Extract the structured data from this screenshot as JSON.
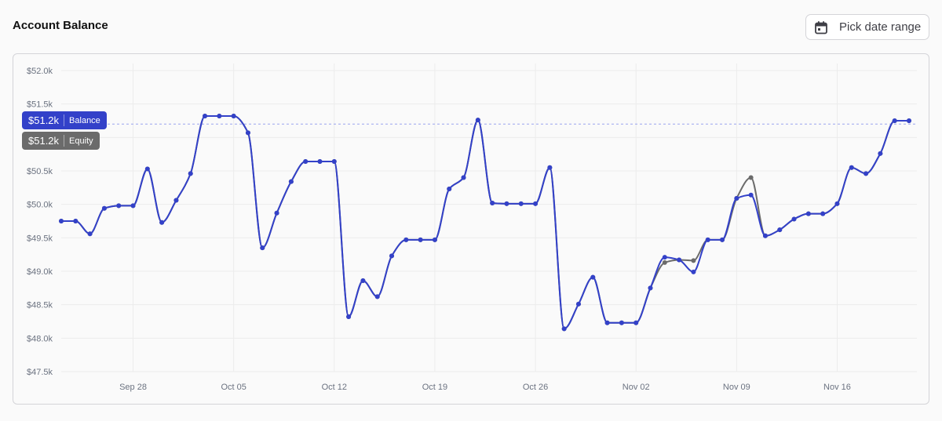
{
  "header": {
    "title": "Account Balance",
    "date_button_label": "Pick date range"
  },
  "colors": {
    "balance": "#3341c9",
    "equity": "#6b6b6b",
    "grid": "#ececec",
    "crosshair": "#9aa3ee"
  },
  "tooltip": {
    "balance_value": "$51.2k",
    "balance_label": "Balance",
    "equity_value": "$51.2k",
    "equity_label": "Equity"
  },
  "chart_data": {
    "type": "line",
    "title": "Account Balance",
    "xlabel": "",
    "ylabel": "",
    "ylim": [
      47500,
      52000
    ],
    "y_ticks": [
      47500,
      48000,
      48500,
      49000,
      49500,
      50000,
      50500,
      51000,
      51500,
      52000
    ],
    "y_tick_labels": [
      "$47.5k",
      "$48.0k",
      "$48.5k",
      "$49.0k",
      "$49.5k",
      "$50.0k",
      "$50.5k",
      "$51.0k",
      "$51.5k",
      "$52.0k"
    ],
    "x_range": [
      "2024-09-23",
      "2024-11-21"
    ],
    "x_ticks": [
      "2024-09-28",
      "2024-10-05",
      "2024-10-12",
      "2024-10-19",
      "2024-10-26",
      "2024-11-02",
      "2024-11-09",
      "2024-11-16"
    ],
    "x_tick_labels": [
      "Sep 28",
      "Oct 05",
      "Oct 12",
      "Oct 19",
      "Oct 26",
      "Nov 02",
      "Nov 09",
      "Nov 16"
    ],
    "grid": true,
    "crosshair_value": 51200,
    "x": [
      "2024-09-23",
      "2024-09-24",
      "2024-09-25",
      "2024-09-26",
      "2024-09-27",
      "2024-09-28",
      "2024-09-29",
      "2024-09-30",
      "2024-10-01",
      "2024-10-02",
      "2024-10-03",
      "2024-10-04",
      "2024-10-05",
      "2024-10-06",
      "2024-10-07",
      "2024-10-08",
      "2024-10-09",
      "2024-10-10",
      "2024-10-11",
      "2024-10-12",
      "2024-10-13",
      "2024-10-14",
      "2024-10-15",
      "2024-10-16",
      "2024-10-17",
      "2024-10-18",
      "2024-10-19",
      "2024-10-20",
      "2024-10-21",
      "2024-10-22",
      "2024-10-23",
      "2024-10-24",
      "2024-10-25",
      "2024-10-26",
      "2024-10-27",
      "2024-10-28",
      "2024-10-29",
      "2024-10-30",
      "2024-10-31",
      "2024-11-01",
      "2024-11-02",
      "2024-11-03",
      "2024-11-04",
      "2024-11-05",
      "2024-11-06",
      "2024-11-07",
      "2024-11-08",
      "2024-11-09",
      "2024-11-10",
      "2024-11-11",
      "2024-11-12",
      "2024-11-13",
      "2024-11-14",
      "2024-11-15",
      "2024-11-16",
      "2024-11-17",
      "2024-11-18",
      "2024-11-19",
      "2024-11-20",
      "2024-11-21"
    ],
    "series": [
      {
        "name": "Equity",
        "values": [
          49750,
          49750,
          49560,
          49940,
          49980,
          49980,
          50530,
          49730,
          50060,
          50460,
          51320,
          51320,
          51320,
          51070,
          49350,
          49870,
          50340,
          50640,
          50640,
          50640,
          48320,
          48860,
          48620,
          49230,
          49470,
          49470,
          49470,
          50230,
          50400,
          51260,
          50020,
          50010,
          50010,
          50010,
          50550,
          48140,
          48510,
          48910,
          48230,
          48230,
          48230,
          48750,
          49130,
          49170,
          49160,
          49470,
          49470,
          50090,
          50400,
          49530,
          49620,
          49780,
          49860,
          49860,
          50010,
          50550,
          50460,
          50760,
          51250,
          51250
        ]
      },
      {
        "name": "Balance",
        "values": [
          49750,
          49750,
          49560,
          49940,
          49980,
          49980,
          50530,
          49730,
          50060,
          50460,
          51320,
          51320,
          51320,
          51070,
          49350,
          49870,
          50340,
          50640,
          50640,
          50640,
          48320,
          48860,
          48620,
          49230,
          49470,
          49470,
          49470,
          50230,
          50400,
          51260,
          50020,
          50010,
          50010,
          50010,
          50550,
          48140,
          48510,
          48910,
          48230,
          48230,
          48230,
          48750,
          49210,
          49170,
          48990,
          49470,
          49470,
          50090,
          50140,
          49530,
          49620,
          49780,
          49860,
          49860,
          50010,
          50550,
          50460,
          50760,
          51250,
          51250
        ]
      }
    ]
  }
}
